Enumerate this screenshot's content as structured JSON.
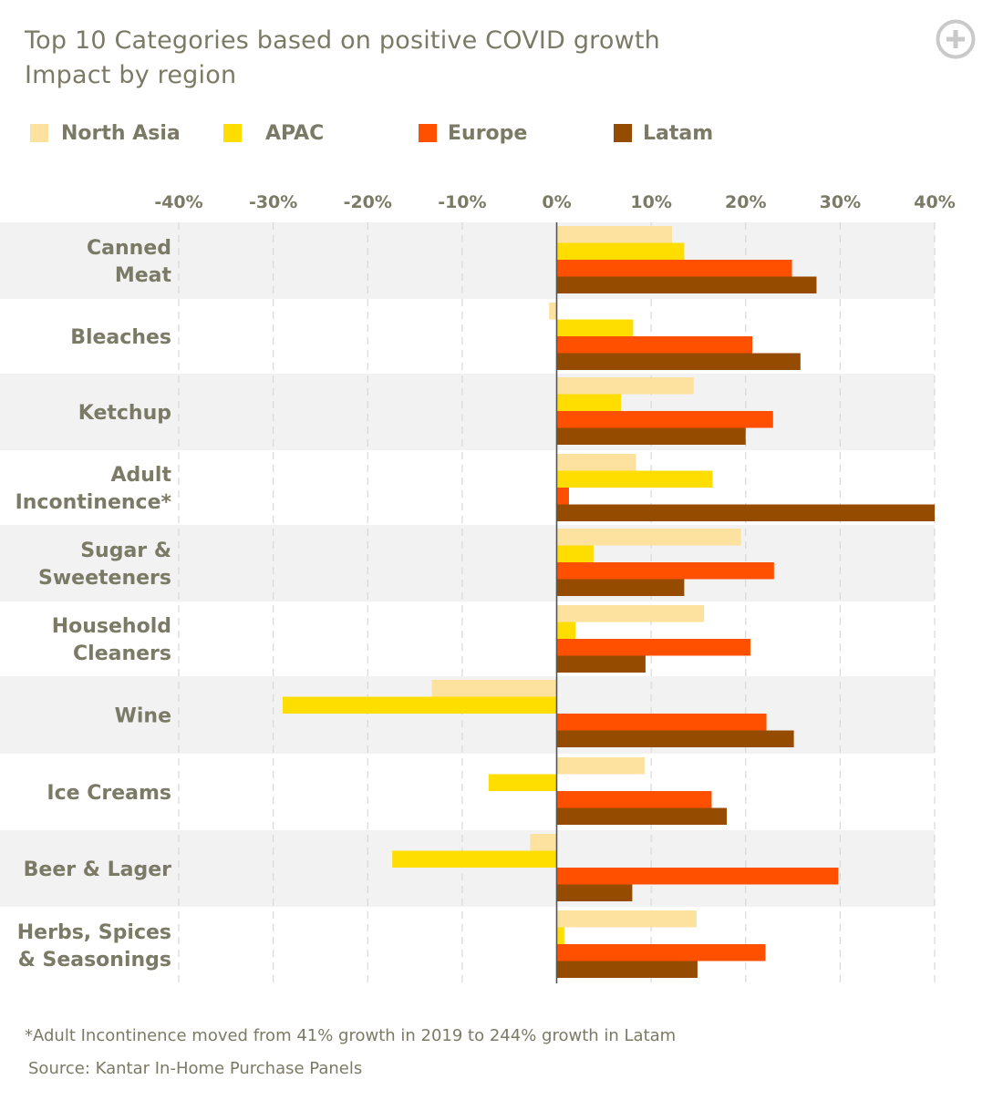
{
  "title": {
    "line1": "Top 10 Categories based on positive COVID growth",
    "line2": "Impact by region"
  },
  "expand_icon": "plus-circle-icon",
  "legend": [
    {
      "name": "North Asia",
      "color": "#fde19e"
    },
    {
      "name": "APAC",
      "color": "#fedd00"
    },
    {
      "name": "Europe",
      "color": "#ff5000"
    },
    {
      "name": "Latam",
      "color": "#954b00"
    }
  ],
  "chart_data": {
    "type": "bar",
    "orientation": "horizontal",
    "xlim": [
      -40,
      40
    ],
    "x_ticks": [
      "-40%",
      "-30%",
      "-20%",
      "-10%",
      "0%",
      "10%",
      "20%",
      "30%",
      "40%"
    ],
    "grid": true,
    "legend_position": "top-left",
    "categories": [
      [
        "Canned",
        "Meat"
      ],
      [
        "Bleaches"
      ],
      [
        "Ketchup"
      ],
      [
        "Adult",
        "Incontinence*"
      ],
      [
        "Sugar &",
        "Sweeteners"
      ],
      [
        "Household",
        "Cleaners"
      ],
      [
        "Wine"
      ],
      [
        "Ice Creams"
      ],
      [
        "Beer & Lager"
      ],
      [
        "Herbs, Spices",
        "& Seasonings"
      ]
    ],
    "series": [
      {
        "name": "North Asia",
        "color": "#fde19e",
        "values": [
          12.2,
          -0.8,
          14.5,
          8.4,
          19.5,
          15.6,
          -13.2,
          9.3,
          -2.8,
          14.8
        ]
      },
      {
        "name": "APAC",
        "color": "#fedd00",
        "values": [
          13.5,
          8.1,
          6.8,
          16.5,
          3.9,
          2.0,
          -29.0,
          -7.2,
          -17.4,
          0.8
        ]
      },
      {
        "name": "Europe",
        "color": "#ff5000",
        "values": [
          24.9,
          20.7,
          22.9,
          1.3,
          23.0,
          20.5,
          22.2,
          16.4,
          29.8,
          22.1
        ]
      },
      {
        "name": "Latam",
        "color": "#954b00",
        "values": [
          27.5,
          25.8,
          20.0,
          40.0,
          13.5,
          9.4,
          25.1,
          18.0,
          8.0,
          14.9
        ]
      }
    ]
  },
  "footnote": "*Adult Incontinence moved from 41% growth in 2019 to 244% growth in Latam",
  "source": "Source: Kantar In-Home Purchase Panels"
}
